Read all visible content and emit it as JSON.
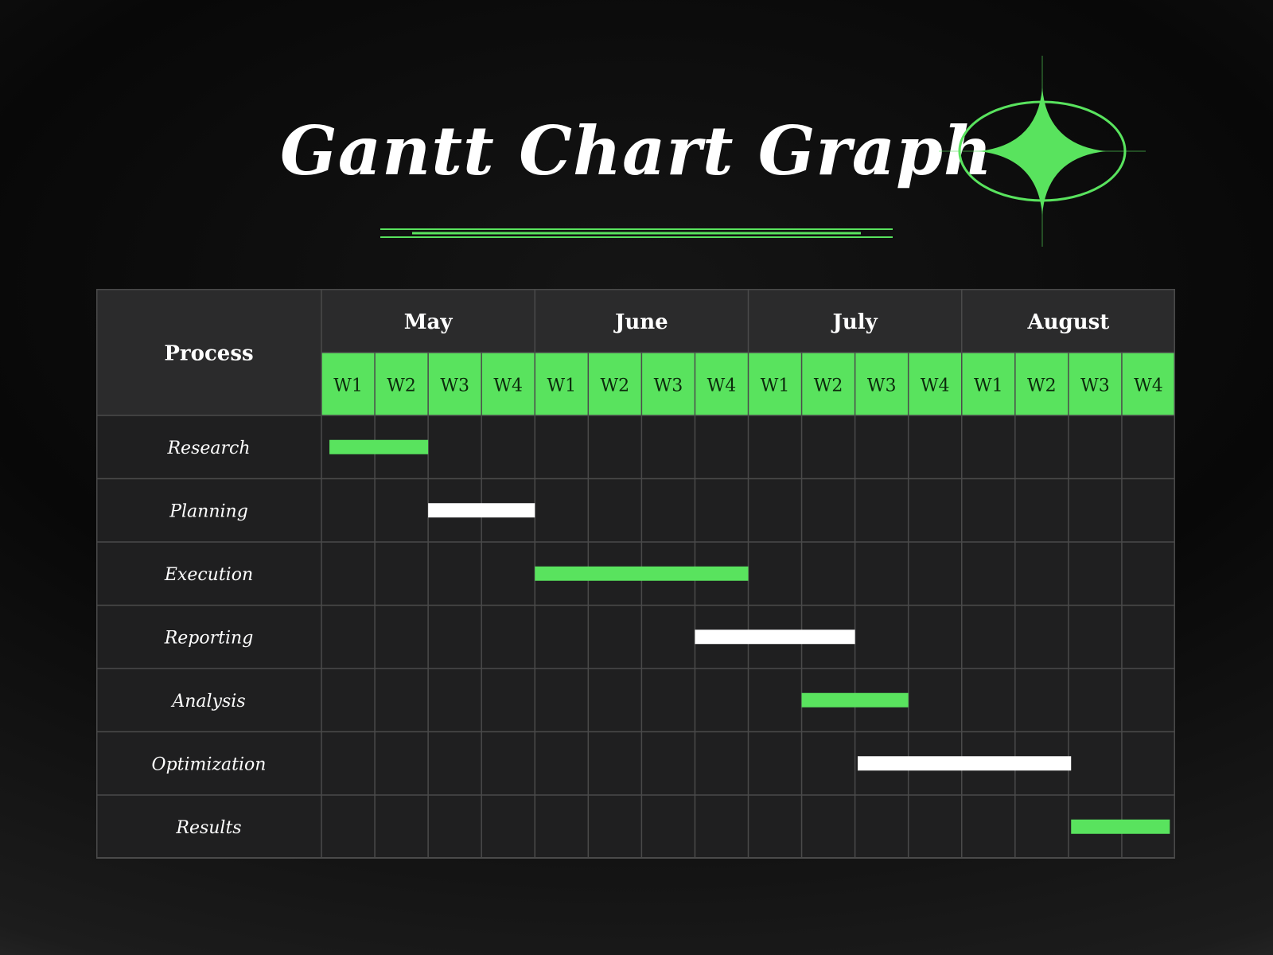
{
  "title": "Gantt Chart Graph",
  "colors": {
    "accent": "#59e35e",
    "bar_alt": "#ffffff",
    "cell": "#1f1f20",
    "line": "#4a4a4a",
    "text": "#ffffff"
  },
  "chart_data": {
    "type": "gantt",
    "title": "Gantt Chart Graph",
    "process_header": "Process",
    "months": [
      "May",
      "June",
      "July",
      "August"
    ],
    "weeks": [
      "W1",
      "W2",
      "W3",
      "W4",
      "W1",
      "W2",
      "W3",
      "W4",
      "W1",
      "W2",
      "W3",
      "W4",
      "W1",
      "W2",
      "W3",
      "W4"
    ],
    "tasks": [
      {
        "name": "Research",
        "start": 0.15,
        "end": 2.0,
        "color": "#59e35e"
      },
      {
        "name": "Planning",
        "start": 2.0,
        "end": 4.0,
        "color": "#ffffff"
      },
      {
        "name": "Execution",
        "start": 4.0,
        "end": 8.0,
        "color": "#59e35e"
      },
      {
        "name": "Reporting",
        "start": 7.0,
        "end": 10.0,
        "color": "#ffffff"
      },
      {
        "name": "Analysis",
        "start": 9.0,
        "end": 11.0,
        "color": "#59e35e"
      },
      {
        "name": "Optimization",
        "start": 10.05,
        "end": 14.05,
        "color": "#ffffff"
      },
      {
        "name": "Results",
        "start": 14.05,
        "end": 15.9,
        "color": "#59e35e"
      }
    ],
    "x_unit": "weeks from start of May",
    "xlim": [
      0,
      16
    ]
  }
}
